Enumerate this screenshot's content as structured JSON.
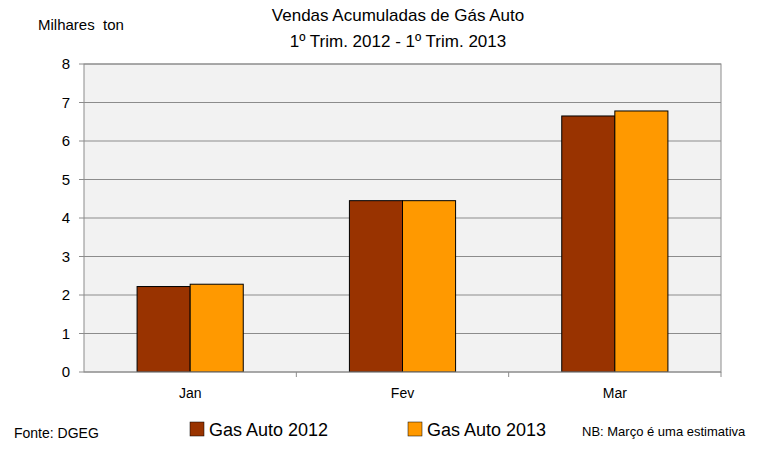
{
  "chart_data": {
    "type": "bar",
    "title": "Vendas Acumuladas de Gás Auto",
    "subtitle": "1º Trim. 2012 - 1º Trim. 2013",
    "y_label": "Milhares  ton",
    "categories": [
      "Jan",
      "Fev",
      "Mar"
    ],
    "series": [
      {
        "name": "Gas Auto 2012",
        "color": "#993300",
        "values": [
          2.22,
          4.45,
          6.65
        ]
      },
      {
        "name": "Gas Auto 2013",
        "color": "#ff9900",
        "values": [
          2.28,
          4.45,
          6.78
        ]
      }
    ],
    "ylim": [
      0,
      8
    ],
    "yticks": [
      0,
      1,
      2,
      3,
      4,
      5,
      6,
      7,
      8
    ],
    "grid": true,
    "legend": "bottom",
    "annotations": [
      "Fonte: DGEG",
      "NB: Março é uma estimativa"
    ]
  }
}
